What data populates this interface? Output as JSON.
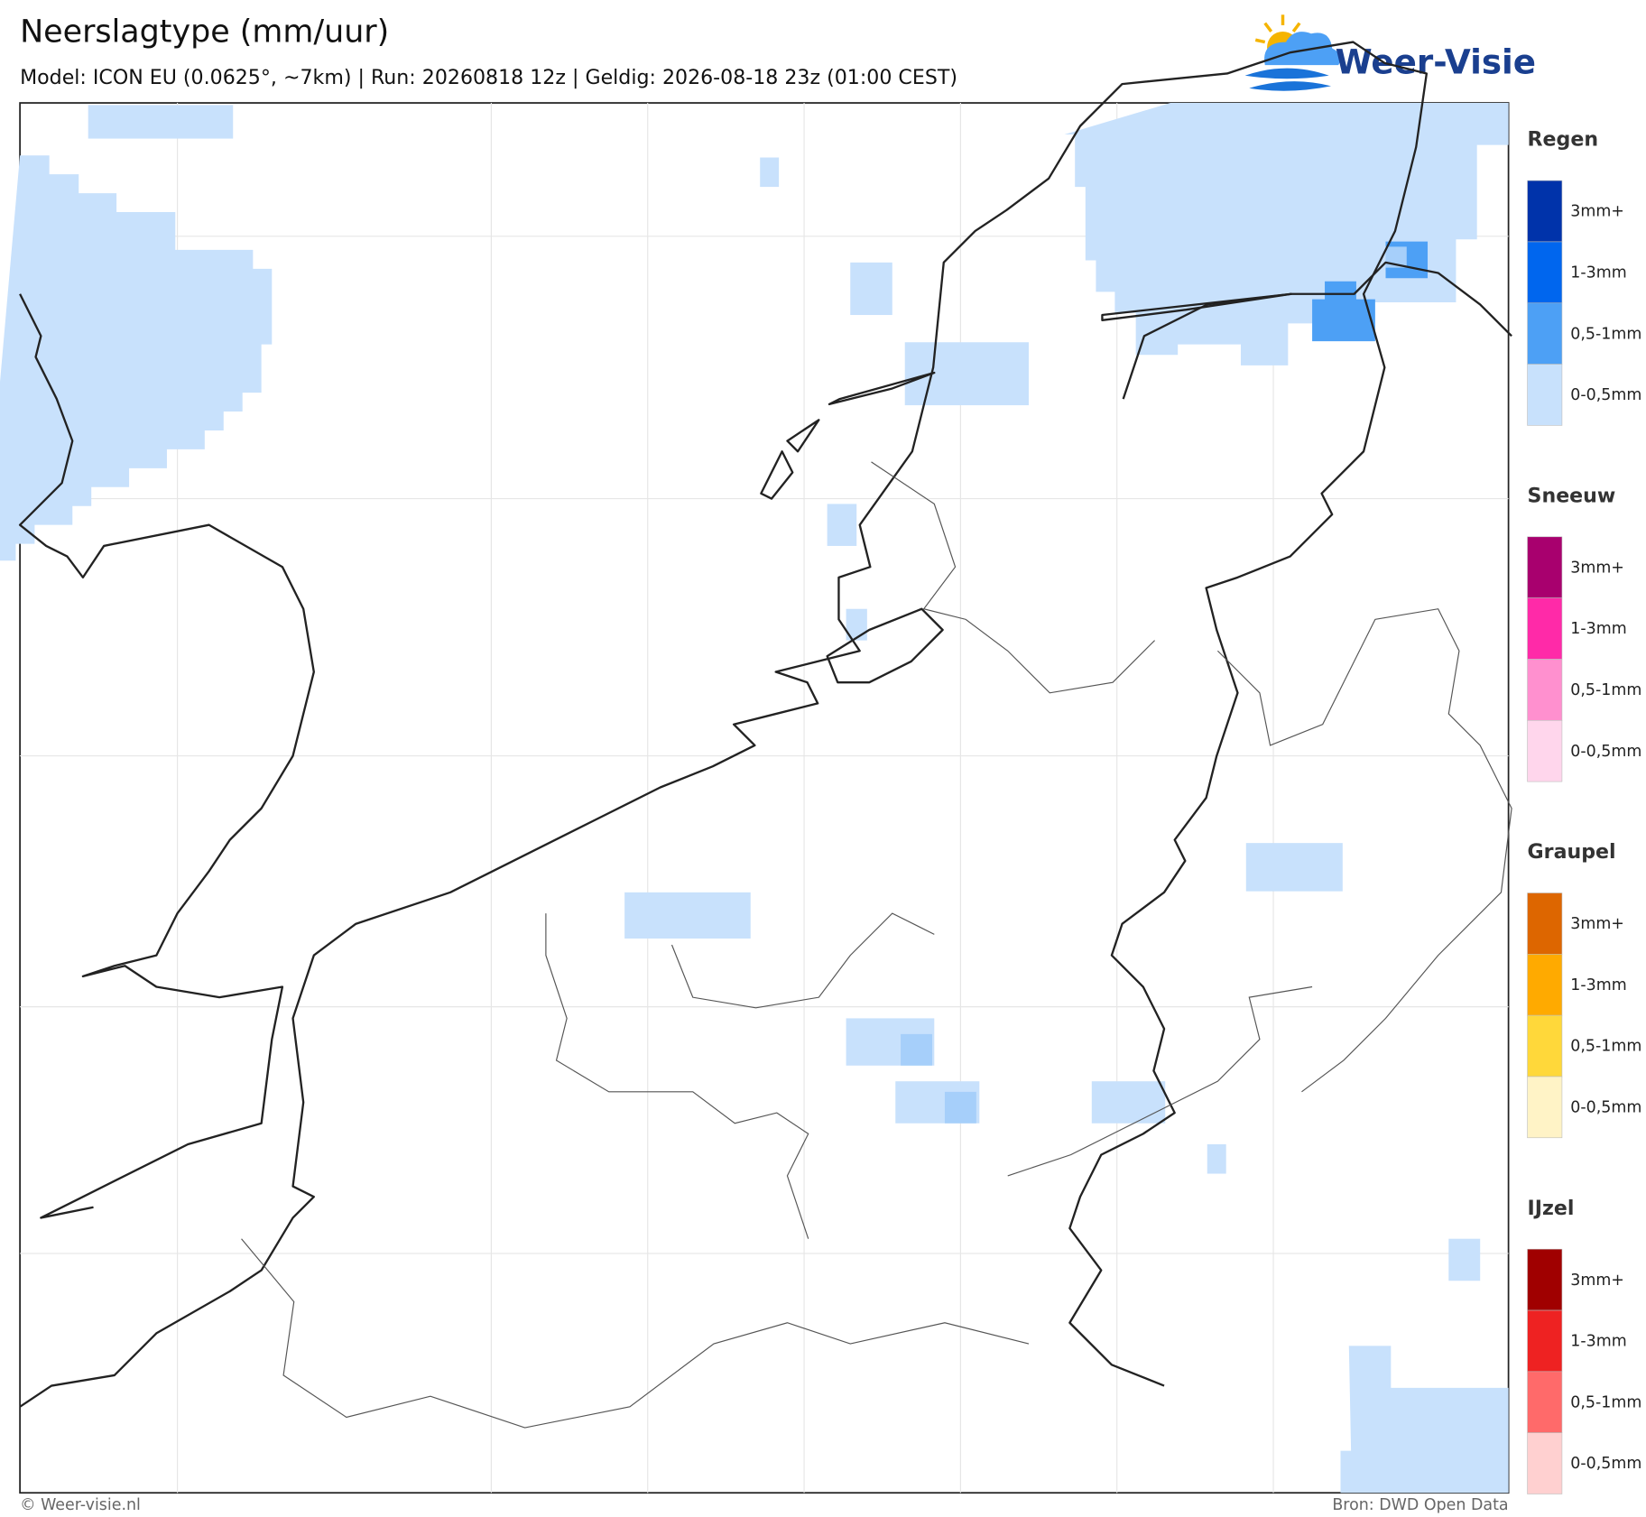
{
  "header": {
    "title": "Neerslagtype (mm/uur)",
    "subtitle": "Model: ICON EU (0.0625°, ~7km)  |  Run: 20260818 12z  |  Geldig: 2026-08-18 23z (01:00 CEST)"
  },
  "logo": {
    "text": "Weer-Visie"
  },
  "legend": {
    "groups": [
      {
        "title": "Regen",
        "items": [
          {
            "label": "3mm+",
            "color": "#0033aa"
          },
          {
            "label": "1-3mm",
            "color": "#0066ee"
          },
          {
            "label": "0,5-1mm",
            "color": "#4da0f5"
          },
          {
            "label": "0-0,5mm",
            "color": "#c8e1fc"
          }
        ]
      },
      {
        "title": "Sneeuw",
        "items": [
          {
            "label": "3mm+",
            "color": "#a8006e"
          },
          {
            "label": "1-3mm",
            "color": "#ff2aa8"
          },
          {
            "label": "0,5-1mm",
            "color": "#ff90cf"
          },
          {
            "label": "0-0,5mm",
            "color": "#ffd6ec"
          }
        ]
      },
      {
        "title": "Graupel",
        "items": [
          {
            "label": "3mm+",
            "color": "#dd6600"
          },
          {
            "label": "1-3mm",
            "color": "#ffaa00"
          },
          {
            "label": "0,5-1mm",
            "color": "#ffd83a"
          },
          {
            "label": "0-0,5mm",
            "color": "#fff3c6"
          }
        ]
      },
      {
        "title": "IJzel",
        "items": [
          {
            "label": "3mm+",
            "color": "#a00000"
          },
          {
            "label": "1-3mm",
            "color": "#ee2222"
          },
          {
            "label": "0,5-1mm",
            "color": "#ff6a6a"
          },
          {
            "label": "0-0,5mm",
            "color": "#ffd0d0"
          }
        ]
      }
    ]
  },
  "footer": {
    "left": "© Weer-visie.nl",
    "right": "Bron: DWD Open Data"
  }
}
